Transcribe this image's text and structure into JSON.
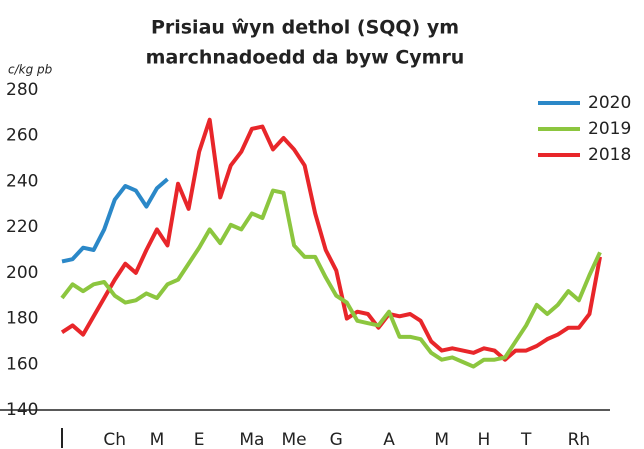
{
  "chart_data": {
    "type": "line",
    "title": [
      "Prisiau ŵyn dethol (SQQ) ym",
      "marchnadoedd da byw Cymru"
    ],
    "y_label": "c/kg pb",
    "x": [
      1,
      2,
      3,
      4,
      5,
      6,
      7,
      8,
      9,
      10,
      11,
      12,
      13,
      14,
      15,
      16,
      17,
      18,
      19,
      20,
      21,
      22,
      23,
      24,
      25,
      26,
      27,
      28,
      29,
      30,
      31,
      32,
      33,
      34,
      35,
      36,
      37,
      38,
      39,
      40,
      41,
      42,
      43,
      44,
      45,
      46,
      47,
      48,
      49,
      50,
      51,
      52
    ],
    "xlim": [
      1,
      52
    ],
    "xticks": [
      {
        "value": 1,
        "label": "I"
      },
      {
        "value": 6,
        "label": "Ch"
      },
      {
        "value": 10,
        "label": "M"
      },
      {
        "value": 14,
        "label": "E"
      },
      {
        "value": 19,
        "label": "Ma"
      },
      {
        "value": 23,
        "label": "Me"
      },
      {
        "value": 27,
        "label": "G"
      },
      {
        "value": 32,
        "label": "A"
      },
      {
        "value": 37,
        "label": "M"
      },
      {
        "value": 41,
        "label": "H"
      },
      {
        "value": 45,
        "label": "T"
      },
      {
        "value": 50,
        "label": "Rh"
      }
    ],
    "ylim": [
      140,
      280
    ],
    "yticks": [
      140,
      160,
      180,
      200,
      220,
      240,
      260,
      280
    ],
    "grid": false,
    "legend": "top-right",
    "series": [
      {
        "name": "2020",
        "color": "#2b88c8",
        "values": [
          205,
          206,
          211,
          210,
          219,
          232,
          238,
          236,
          229,
          237,
          241,
          null,
          null,
          null,
          null,
          null,
          null,
          null,
          null,
          null,
          null,
          null,
          null,
          null,
          null,
          null,
          null,
          null,
          null,
          null,
          null,
          null,
          null,
          null,
          null,
          null,
          null,
          null,
          null,
          null,
          null,
          null,
          null,
          null,
          null,
          null,
          null,
          null,
          null,
          null,
          null,
          null
        ]
      },
      {
        "name": "2019",
        "color": "#8cc63f",
        "values": [
          189,
          195,
          192,
          195,
          196,
          190,
          187,
          188,
          191,
          189,
          195,
          197,
          204,
          211,
          219,
          213,
          221,
          219,
          226,
          224,
          236,
          235,
          212,
          207,
          207,
          198,
          190,
          187,
          179,
          178,
          177,
          183,
          172,
          172,
          171,
          165,
          162,
          163,
          161,
          159,
          162,
          162,
          163,
          170,
          177,
          186,
          182,
          186,
          192,
          188,
          199,
          209
        ]
      },
      {
        "name": "2018",
        "color": "#e8262a",
        "values": [
          174,
          177,
          173,
          181,
          189,
          197,
          204,
          200,
          210,
          219,
          212,
          239,
          228,
          253,
          267,
          233,
          247,
          253,
          263,
          264,
          254,
          259,
          254,
          247,
          226,
          210,
          201,
          180,
          183,
          182,
          176,
          182,
          181,
          182,
          179,
          170,
          166,
          167,
          166,
          165,
          167,
          166,
          162,
          166,
          166,
          168,
          171,
          173,
          176,
          176,
          182,
          207
        ]
      }
    ]
  }
}
